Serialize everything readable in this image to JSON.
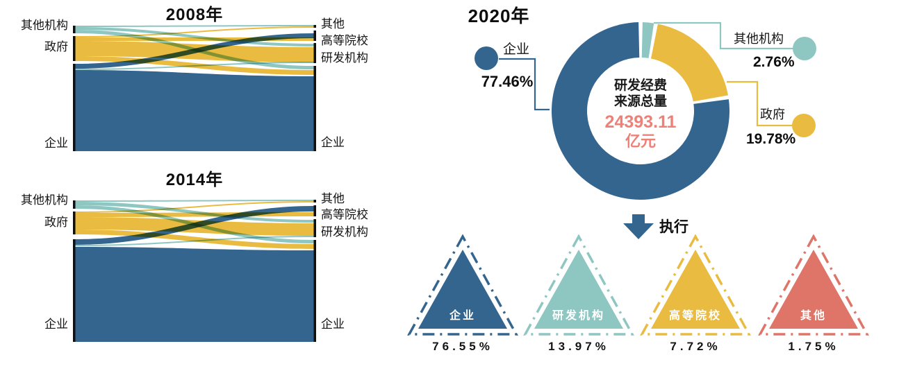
{
  "colors": {
    "blue": "#34658f",
    "yellow": "#e9bb40",
    "teal": "#8ec6c2",
    "salmon": "#de7568",
    "value_highlight": "#ef8078",
    "node_bar": "#111111"
  },
  "chart_data": [
    {
      "type": "sankey",
      "title": "2008年",
      "left_nodes": [
        "其他机构",
        "政府",
        "企业"
      ],
      "right_nodes": [
        "其他",
        "高等院校",
        "研发机构",
        "企业"
      ],
      "node_colors": {
        "其他机构": "#8ec6c2",
        "政府": "#e9bb40",
        "企业": "#34658f"
      },
      "flows": [
        {
          "from": "其他机构",
          "to": "其他",
          "weight": 1
        },
        {
          "from": "其他机构",
          "to": "研发机构",
          "weight": 2
        },
        {
          "from": "其他机构",
          "to": "企业",
          "weight": 2.5
        },
        {
          "from": "政府",
          "to": "其他",
          "weight": 1
        },
        {
          "from": "政府",
          "to": "高等院校",
          "weight": 2.5
        },
        {
          "from": "政府",
          "to": "研发机构",
          "weight": 11
        },
        {
          "from": "政府",
          "to": "企业",
          "weight": 3.5
        },
        {
          "from": "企业",
          "to": "高等院校",
          "weight": 3.5
        },
        {
          "from": "企业",
          "to": "研发机构",
          "weight": 1
        },
        {
          "from": "企业",
          "to": "企业",
          "weight": 58
        }
      ]
    },
    {
      "type": "sankey",
      "title": "2014年",
      "left_nodes": [
        "其他机构",
        "政府",
        "企业"
      ],
      "right_nodes": [
        "其他",
        "高等院校",
        "研发机构",
        "企业"
      ],
      "node_colors": {
        "其他机构": "#8ec6c2",
        "政府": "#e9bb40",
        "企业": "#34658f"
      },
      "flows": [
        {
          "from": "其他机构",
          "to": "其他",
          "weight": 1
        },
        {
          "from": "其他机构",
          "to": "研发机构",
          "weight": 2.5
        },
        {
          "from": "其他机构",
          "to": "企业",
          "weight": 2.5
        },
        {
          "from": "政府",
          "to": "其他",
          "weight": 1
        },
        {
          "from": "政府",
          "to": "高等院校",
          "weight": 3
        },
        {
          "from": "政府",
          "to": "研发机构",
          "weight": 9
        },
        {
          "from": "政府",
          "to": "企业",
          "weight": 3.5
        },
        {
          "from": "企业",
          "to": "高等院校",
          "weight": 4
        },
        {
          "from": "企业",
          "to": "研发机构",
          "weight": 1
        },
        {
          "from": "企业",
          "to": "企业",
          "weight": 67
        }
      ]
    },
    {
      "type": "donut",
      "title": "2020年",
      "center": {
        "line1": "研发经费",
        "line2": "来源总量",
        "value": "24393.11",
        "unit": "亿元"
      },
      "slices": [
        {
          "label": "企业",
          "value": 77.46,
          "display": "77.46%",
          "color": "#34658f"
        },
        {
          "label": "其他机构",
          "value": 2.76,
          "display": "2.76%",
          "color": "#8ec6c2"
        },
        {
          "label": "政府",
          "value": 19.78,
          "display": "19.78%",
          "color": "#e9bb40"
        }
      ],
      "draw_order_from_top_clockwise": [
        "其他机构",
        "政府",
        "企业"
      ],
      "legend_position": "left-and-right callout lines with dots"
    },
    {
      "type": "pictogram-triangles",
      "arrow_label": "执行",
      "items": [
        {
          "label": "企业",
          "value": 76.55,
          "display": "76.55%",
          "color": "#34658f"
        },
        {
          "label": "研发机构",
          "value": 13.97,
          "display": "13.97%",
          "color": "#8ec6c2"
        },
        {
          "label": "高等院校",
          "value": 7.72,
          "display": "7.72%",
          "color": "#e9bb40"
        },
        {
          "label": "其他",
          "value": 1.75,
          "display": "1.75%",
          "color": "#de7568"
        }
      ]
    }
  ]
}
